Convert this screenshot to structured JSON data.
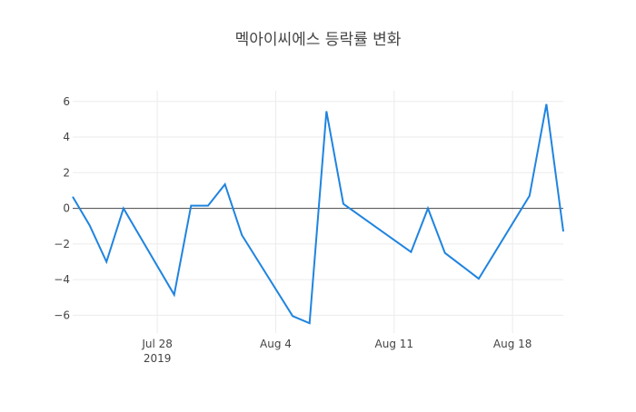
{
  "chart_data": {
    "type": "line",
    "title": "멕아이씨에스 등락률 변화",
    "xlabel": "",
    "ylabel": "",
    "ylim": [
      -7,
      6.6
    ],
    "xlim": [
      "2019-07-23",
      "2019-08-21"
    ],
    "grid": true,
    "zero_line": true,
    "line_color": "#1f84e0",
    "x_ticks": [
      {
        "date": "2019-07-28",
        "label": "Jul 28",
        "sublabel": "2019"
      },
      {
        "date": "2019-08-04",
        "label": "Aug 4",
        "sublabel": ""
      },
      {
        "date": "2019-08-11",
        "label": "Aug 11",
        "sublabel": ""
      },
      {
        "date": "2019-08-18",
        "label": "Aug 18",
        "sublabel": ""
      }
    ],
    "y_ticks": [
      6,
      4,
      2,
      0,
      -2,
      -4,
      -6
    ],
    "y_tick_labels": [
      "6",
      "4",
      "2",
      "0",
      "−2",
      "−4",
      "−6"
    ],
    "x": [
      "2019-07-23",
      "2019-07-24",
      "2019-07-25",
      "2019-07-26",
      "2019-07-29",
      "2019-07-30",
      "2019-07-31",
      "2019-08-01",
      "2019-08-02",
      "2019-08-05",
      "2019-08-06",
      "2019-08-07",
      "2019-08-08",
      "2019-08-12",
      "2019-08-13",
      "2019-08-14",
      "2019-08-16",
      "2019-08-19",
      "2019-08-20",
      "2019-08-21"
    ],
    "y": [
      0.65,
      -0.95,
      -3.0,
      0.0,
      -4.85,
      0.15,
      0.15,
      1.35,
      -1.5,
      -6.05,
      -6.45,
      5.45,
      0.25,
      -2.45,
      0.0,
      -2.5,
      -3.95,
      0.7,
      5.85,
      -1.3
    ]
  }
}
